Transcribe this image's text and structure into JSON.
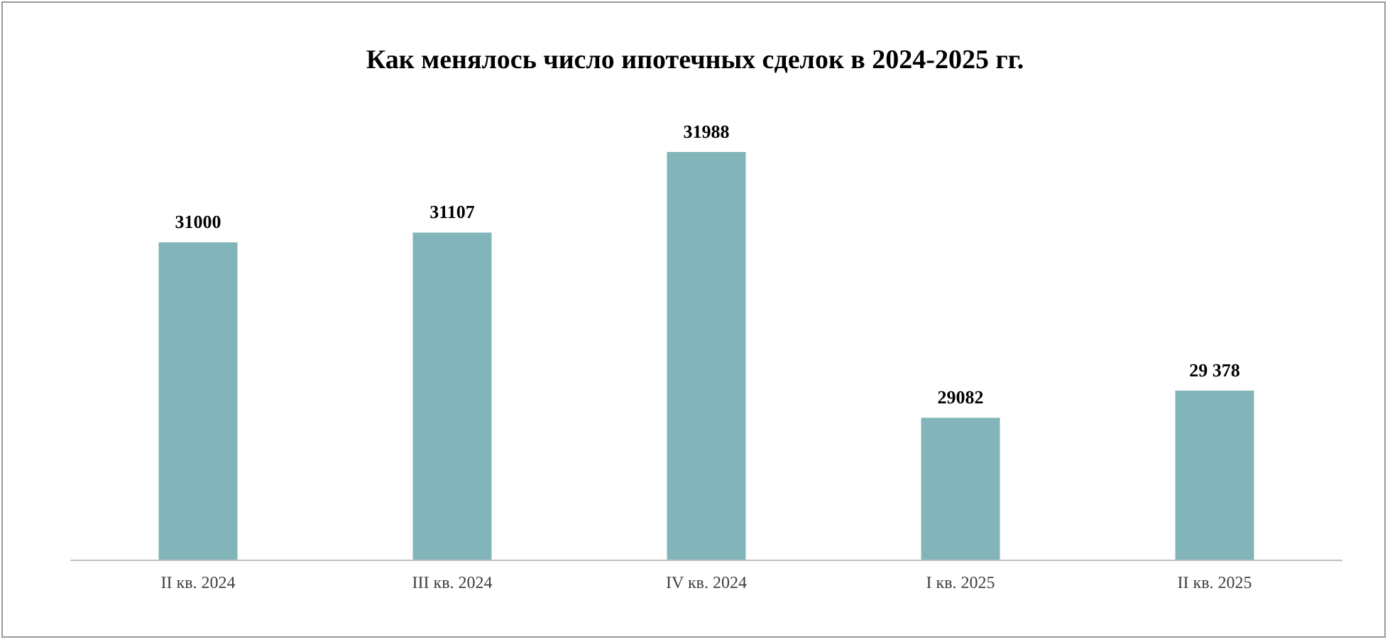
{
  "chart_data": {
    "type": "bar",
    "title": "Как менялось число ипотечных сделок в 2024-2025 гг.",
    "categories": [
      "II кв. 2024",
      "III кв. 2024",
      "IV кв. 2024",
      "I кв. 2025",
      "II кв. 2025"
    ],
    "values": [
      31000,
      31107,
      31988,
      29082,
      29378
    ],
    "value_labels": [
      "31000",
      "31107",
      "31988",
      "29082",
      "29 378"
    ],
    "color": "#82b5b9",
    "ylim": [
      27530,
      31988
    ],
    "tick_labels": "x",
    "grid": false
  }
}
